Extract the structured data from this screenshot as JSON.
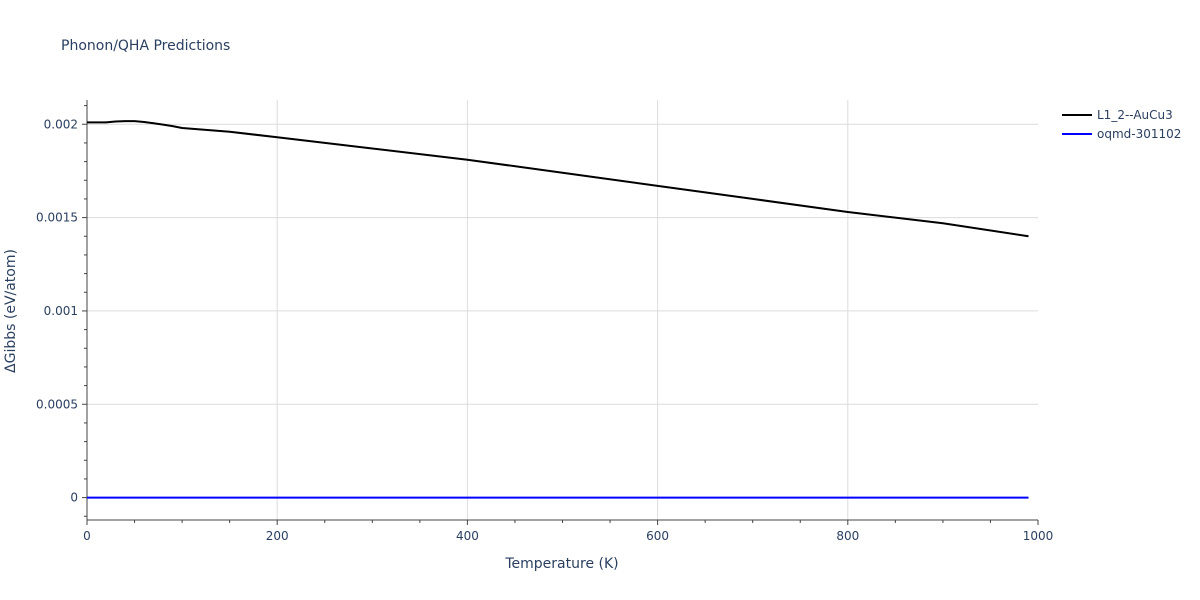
{
  "chart_data": {
    "type": "line",
    "title": "Phonon/QHA Predictions",
    "xlabel": "Temperature (K)",
    "ylabel": "ΔGibbs (eV/atom)",
    "xlim": [
      0,
      1000
    ],
    "ylim": [
      -0.00012,
      0.00213
    ],
    "x_ticks": [
      0,
      200,
      400,
      600,
      800,
      1000
    ],
    "x_tick_labels": [
      "0",
      "200",
      "400",
      "600",
      "800",
      "1000"
    ],
    "y_ticks": [
      0,
      0.0005,
      0.001,
      0.0015,
      0.002
    ],
    "y_tick_labels": [
      "0",
      "0.0005",
      "0.001",
      "0.0015",
      "0.002"
    ],
    "grid": true,
    "legend_position": "top-right",
    "series": [
      {
        "name": "L1_2--AuCu3",
        "color": "#000000",
        "x": [
          0,
          10,
          20,
          30,
          40,
          50,
          60,
          70,
          80,
          90,
          100,
          150,
          200,
          300,
          400,
          500,
          600,
          700,
          800,
          900,
          990
        ],
        "y": [
          0.00201,
          0.00201,
          0.00201,
          0.002015,
          0.002017,
          0.002017,
          0.002012,
          0.002005,
          0.001998,
          0.00199,
          0.00198,
          0.00196,
          0.00193,
          0.00187,
          0.00181,
          0.00174,
          0.00167,
          0.0016,
          0.00153,
          0.00147,
          0.0014
        ]
      },
      {
        "name": "oqmd-301102",
        "color": "#0000ff",
        "x": [
          0,
          990
        ],
        "y": [
          0,
          0
        ]
      }
    ]
  }
}
